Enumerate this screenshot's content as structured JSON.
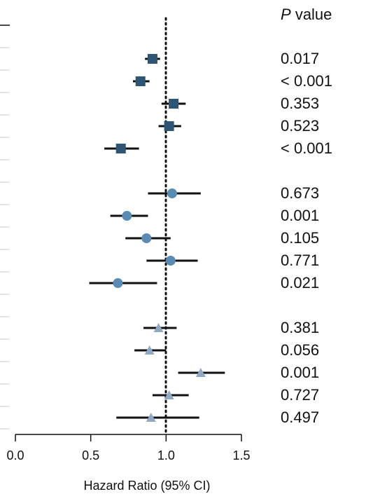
{
  "p_header": {
    "letter": "P",
    "word": "value"
  },
  "chart_data": {
    "type": "forest",
    "xlabel": "Hazard Ratio (95% CI)",
    "xlim": [
      0.0,
      1.5
    ],
    "x_ticks": [
      "0.0",
      "0.5",
      "1.0",
      "1.5"
    ],
    "reference_line": 1.0,
    "colors": {
      "square": "#2e5574",
      "circle": "#5a8bb5",
      "triangle": "#8fa9c4"
    },
    "rows": [
      {
        "hr": 0.91,
        "lo": 0.86,
        "hi": 0.96,
        "marker": "square",
        "p": "0.017"
      },
      {
        "hr": 0.83,
        "lo": 0.78,
        "hi": 0.89,
        "marker": "square",
        "p": "< 0.001"
      },
      {
        "hr": 1.05,
        "lo": 0.97,
        "hi": 1.13,
        "marker": "square",
        "p": "0.353"
      },
      {
        "hr": 1.02,
        "lo": 0.95,
        "hi": 1.1,
        "marker": "square",
        "p": "0.523"
      },
      {
        "hr": 0.7,
        "lo": 0.59,
        "hi": 0.82,
        "marker": "square",
        "p": "< 0.001"
      },
      {
        "hr": 1.04,
        "lo": 0.88,
        "hi": 1.23,
        "marker": "circle",
        "p": "0.673"
      },
      {
        "hr": 0.74,
        "lo": 0.63,
        "hi": 0.88,
        "marker": "circle",
        "p": "0.001"
      },
      {
        "hr": 0.87,
        "lo": 0.73,
        "hi": 1.03,
        "marker": "circle",
        "p": "0.105"
      },
      {
        "hr": 1.03,
        "lo": 0.87,
        "hi": 1.21,
        "marker": "circle",
        "p": "0.771"
      },
      {
        "hr": 0.68,
        "lo": 0.49,
        "hi": 0.94,
        "marker": "circle",
        "p": "0.021"
      },
      {
        "hr": 0.95,
        "lo": 0.85,
        "hi": 1.07,
        "marker": "triangle",
        "p": "0.381"
      },
      {
        "hr": 0.89,
        "lo": 0.79,
        "hi": 1.0,
        "marker": "triangle",
        "p": "0.056"
      },
      {
        "hr": 1.23,
        "lo": 1.08,
        "hi": 1.39,
        "marker": "triangle",
        "p": "0.001"
      },
      {
        "hr": 1.02,
        "lo": 0.91,
        "hi": 1.15,
        "marker": "triangle",
        "p": "0.727"
      },
      {
        "hr": 0.9,
        "lo": 0.67,
        "hi": 1.22,
        "marker": "triangle",
        "p": "0.497"
      }
    ]
  }
}
